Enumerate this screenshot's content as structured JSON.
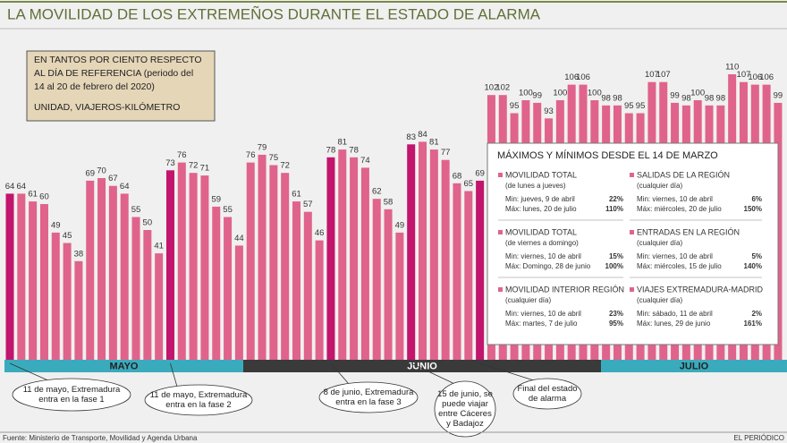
{
  "title": "LA MOVILIDAD DE LOS EXTREMEÑOS DURANTE EL ESTADO DE ALARMA",
  "note": [
    "EN TANTOS POR CIENTO RESPECTO",
    "AL DÍA DE REFERENCIA (periodo del",
    "14 al 20 de febrero del 2020)",
    "UNIDAD, VIAJEROS-KILÓMETRO"
  ],
  "chart_data": {
    "type": "bar",
    "values": [
      64,
      64,
      61,
      60,
      49,
      45,
      38,
      69,
      70,
      67,
      64,
      55,
      50,
      41,
      73,
      76,
      72,
      71,
      59,
      55,
      44,
      76,
      79,
      75,
      72,
      61,
      57,
      46,
      78,
      81,
      78,
      74,
      62,
      58,
      49,
      83,
      84,
      81,
      77,
      68,
      65,
      69,
      102,
      102,
      95,
      100,
      99,
      93,
      100,
      106,
      106,
      100,
      98,
      98,
      95,
      95,
      107,
      107,
      99,
      98,
      100,
      98,
      98,
      110,
      107,
      106,
      106,
      99
    ],
    "color": "#e0638c",
    "highlight_color": "#c2156d",
    "highlights": [
      0,
      14,
      28,
      35,
      41
    ],
    "months": [
      {
        "name": "MAYO",
        "color": "#3aabbd"
      },
      {
        "name": "JUNIO",
        "color": "#3a3a3a"
      },
      {
        "name": "JULIO",
        "color": "#3aabbd"
      }
    ],
    "annotations": [
      {
        "lines": [
          "11 de mayo, Extremadura",
          "entra en la fase 1"
        ],
        "bar": 0
      },
      {
        "lines": [
          "11 de mayo, Extremadura",
          "entra en la fase 2"
        ],
        "bar": 14
      },
      {
        "lines": [
          "8 de junio, Extremadura",
          "entra en la fase 3"
        ],
        "bar": 28
      },
      {
        "lines": [
          "15 de junio, se",
          "puede viajar",
          "entre Cáceres",
          "y Badajoz"
        ],
        "bar": 35
      },
      {
        "lines": [
          "Final del estado",
          "de alarma"
        ],
        "bar": 41
      }
    ]
  },
  "inset": {
    "title": "MÁXIMOS Y MÍNIMOS DESDE EL 14 DE MARZO",
    "items": [
      {
        "name": "MOVILIDAD TOTAL",
        "sub": "(de lunes a jueves)",
        "min_label": "Min: jueves, 9 de abril",
        "min": "22%",
        "max_label": "Máx: lunes, 20 de julio",
        "max": "110%"
      },
      {
        "name": "SALIDAS DE LA REGIÓN",
        "sub": "(cualquier día)",
        "min_label": "Min: viernes, 10 de abril",
        "min": "6%",
        "max_label": "Máx: miércoles, 20 de julio",
        "max": "150%"
      },
      {
        "name": "MOVILIDAD TOTAL",
        "sub": "(de viernes a domingo)",
        "min_label": "Min: viernes, 10 de abril",
        "min": "15%",
        "max_label": "Máx: Domingo, 28 de junio",
        "max": "100%"
      },
      {
        "name": "ENTRADAS EN LA REGIÓN",
        "sub": "(cualquier día)",
        "min_label": "Min: viernes, 10 de abril",
        "min": "5%",
        "max_label": "Máx: miércoles, 15 de julio",
        "max": "140%"
      },
      {
        "name": "MOVILIDAD INTERIOR REGIÓN",
        "sub": "(cualquier día)",
        "min_label": "Min: viernes, 10 de abril",
        "min": "23%",
        "max_label": "Máx: martes, 7 de julio",
        "max": "95%"
      },
      {
        "name": "VIAJES EXTREMADURA-MADRID",
        "sub": "(cualquier día)",
        "min_label": "Min: sábado, 11 de abril",
        "min": "2%",
        "max_label": "Máx: lunes, 29 de junio",
        "max": "161%"
      }
    ]
  },
  "source": "Fuente: Ministerio de Transporte, Movilidad y Agenda Urbana",
  "credit": "EL PERIÓDICO"
}
